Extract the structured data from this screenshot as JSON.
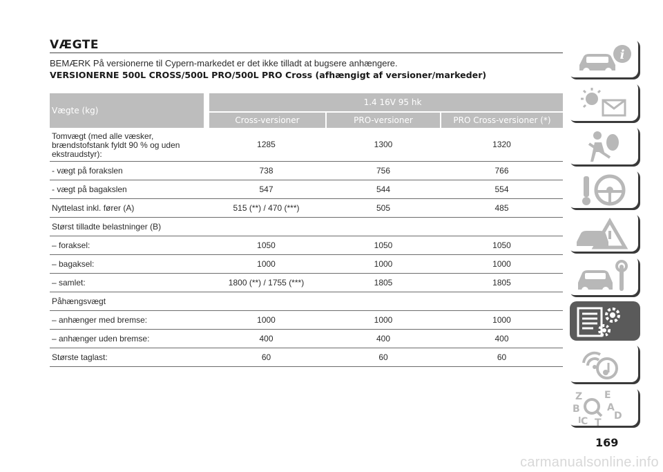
{
  "title": "VÆGTE",
  "note": "BEMÆRK På versionerne til Cypern-markedet er det ikke tilladt at bugsere anhængere.",
  "subheading": "VERSIONERNE 500L CROSS/500L PRO/500L PRO Cross (afhængigt af versioner/markeder)",
  "table": {
    "corner_label": "Vægte (kg)",
    "engine": "1.4 16V 95 hk",
    "versions": [
      "Cross-versioner",
      "PRO-versioner",
      "PRO Cross-versioner (*)"
    ],
    "rows": [
      {
        "label": "Tomvægt (med alle væsker, brændstofstank fyldt 90 % og uden ekstraudstyr):",
        "values": [
          "1285",
          "1300",
          "1320"
        ]
      },
      {
        "label": "- vægt på forakslen",
        "values": [
          "738",
          "756",
          "766"
        ]
      },
      {
        "label": "- vægt på bagakslen",
        "values": [
          "547",
          "544",
          "554"
        ]
      },
      {
        "label": "Nyttelast inkl. fører (A)",
        "values": [
          "515 (**) / 470 (***)",
          "505",
          "485"
        ]
      },
      {
        "label": "Størst tilladte belastninger (B)",
        "values": [
          "",
          "",
          ""
        ]
      },
      {
        "label": "– foraksel:",
        "values": [
          "1050",
          "1050",
          "1050"
        ]
      },
      {
        "label": "– bagaksel:",
        "values": [
          "1000",
          "1000",
          "1000"
        ]
      },
      {
        "label": "– samlet:",
        "values": [
          "1800 (**) / 1755 (***)",
          "1805",
          "1805"
        ]
      },
      {
        "label": "Påhængsvægt",
        "values": [
          "",
          "",
          ""
        ]
      },
      {
        "label": "– anhænger med bremse:",
        "values": [
          "1000",
          "1000",
          "1000"
        ]
      },
      {
        "label": "– anhænger uden bremse:",
        "values": [
          "400",
          "400",
          "400"
        ]
      },
      {
        "label": "Største taglast:",
        "values": [
          "60",
          "60",
          "60"
        ]
      }
    ]
  },
  "chapter_icons": [
    {
      "name": "car-info-icon",
      "active": false
    },
    {
      "name": "warning-lights-icon",
      "active": false
    },
    {
      "name": "safety-airbag-icon",
      "active": false
    },
    {
      "name": "key-steering-wheel-icon",
      "active": false
    },
    {
      "name": "emergency-triangle-icon",
      "active": false
    },
    {
      "name": "car-service-icon",
      "active": false
    },
    {
      "name": "technical-specs-icon",
      "active": true
    },
    {
      "name": "multimedia-icon",
      "active": false
    },
    {
      "name": "alphabetical-index-icon",
      "active": false
    }
  ],
  "page_number": "169",
  "watermark": "carmanualsonline.info",
  "colors": {
    "header_bg": "#bdbdbd",
    "active_tab": "#5a5a5a",
    "icon_gray": "#b8b8b8"
  }
}
